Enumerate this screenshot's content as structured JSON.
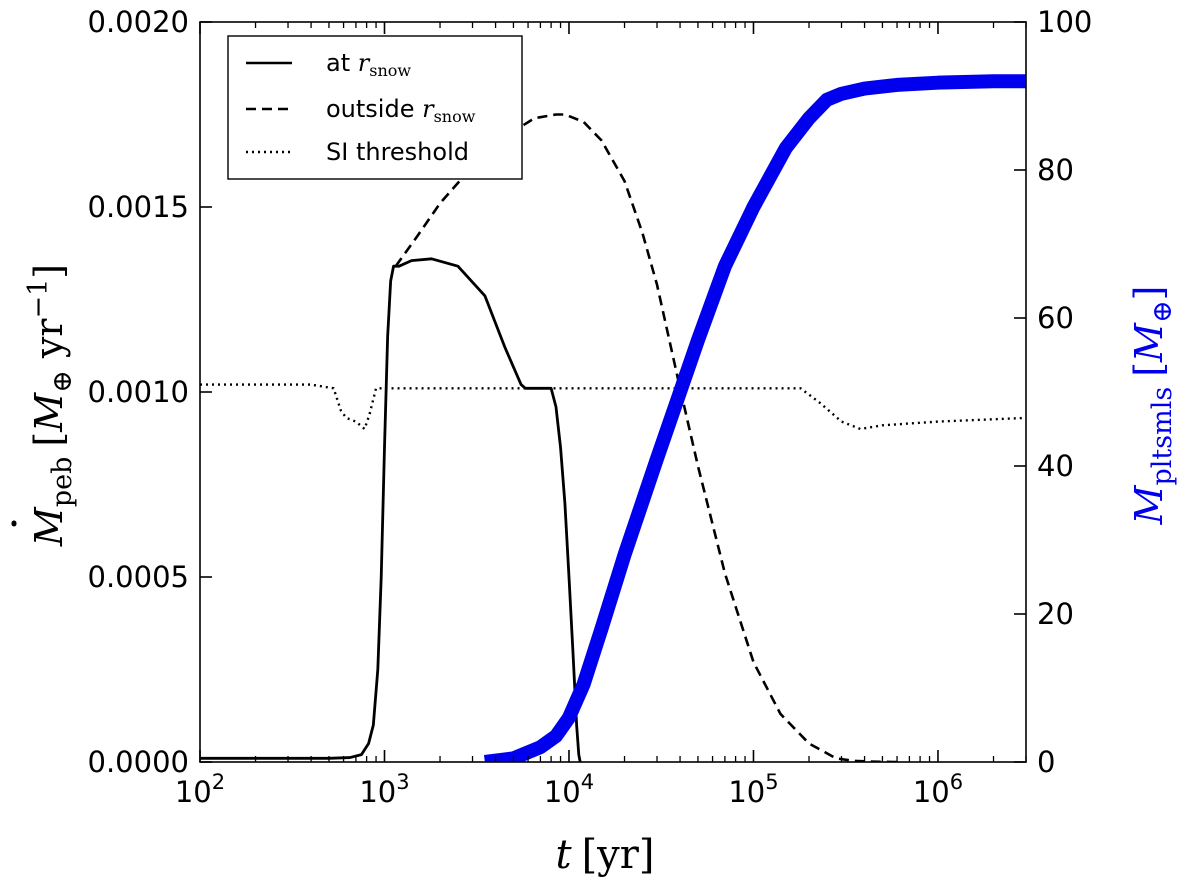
{
  "chart_data": {
    "type": "line",
    "title": "",
    "xlabel": {
      "sym": "t",
      "unit": "[yr]"
    },
    "ylabel_left": {
      "sym": "M",
      "sub": "peb",
      "unit_open": "[",
      "unit_sym": "M",
      "unit_sub": "⊕",
      "unit_rest": " yr",
      "unit_sup": "−1",
      "unit_close": "]"
    },
    "ylabel_right": {
      "sym": "M",
      "sub": "pltsmls",
      "unit_open": "[",
      "unit_sym": "M",
      "unit_sub": "⊕",
      "unit_close": "]",
      "color": "#0000ee"
    },
    "x_scale": "log",
    "xlim": [
      100,
      3000000
    ],
    "ylim_left": [
      0,
      0.002
    ],
    "ylim_right": [
      0,
      100
    ],
    "x_ticks": [
      {
        "value": 100,
        "base": "10",
        "exp": "2"
      },
      {
        "value": 1000,
        "base": "10",
        "exp": "3"
      },
      {
        "value": 10000,
        "base": "10",
        "exp": "4"
      },
      {
        "value": 100000,
        "base": "10",
        "exp": "5"
      },
      {
        "value": 1000000,
        "base": "10",
        "exp": "6"
      }
    ],
    "y_ticks_left": [
      {
        "value": 0,
        "label": "0.0000"
      },
      {
        "value": 0.0005,
        "label": "0.0005"
      },
      {
        "value": 0.001,
        "label": "0.0010"
      },
      {
        "value": 0.0015,
        "label": "0.0015"
      },
      {
        "value": 0.002,
        "label": "0.0020"
      }
    ],
    "y_ticks_right": [
      {
        "value": 0,
        "label": "0"
      },
      {
        "value": 20,
        "label": "20"
      },
      {
        "value": 40,
        "label": "40"
      },
      {
        "value": 60,
        "label": "60"
      },
      {
        "value": 80,
        "label": "80"
      },
      {
        "value": 100,
        "label": "100"
      }
    ],
    "grid": false,
    "legend_position": "top-left",
    "legend": [
      {
        "key": "at",
        "text": "at ",
        "sym": "r",
        "sub": "snow",
        "style": "solid"
      },
      {
        "key": "outside",
        "text": "outside ",
        "sym": "r",
        "sub": "snow",
        "style": "dashed"
      },
      {
        "key": "si",
        "text": "SI threshold",
        "style": "dotted"
      }
    ],
    "series": [
      {
        "key": "at",
        "axis": "left",
        "style": "solid",
        "color": "#000000",
        "x": [
          100,
          300,
          500,
          650,
          750,
          820,
          870,
          920,
          960,
          1000,
          1040,
          1080,
          1120,
          1200,
          1400,
          1800,
          2500,
          3500,
          4500,
          5500,
          5800,
          7000,
          8000,
          8500,
          9000,
          9500,
          10000,
          10500,
          11000,
          11300,
          11500
        ],
        "y": [
          1e-05,
          1e-05,
          1e-05,
          1.2e-05,
          2e-05,
          5e-05,
          0.0001,
          0.00025,
          0.0005,
          0.00085,
          0.00115,
          0.0013,
          0.00134,
          0.00134,
          0.001355,
          0.00136,
          0.00134,
          0.00126,
          0.00112,
          0.00102,
          0.00101,
          0.00101,
          0.00101,
          0.00096,
          0.00085,
          0.0007,
          0.0005,
          0.0003,
          0.0001,
          2e-05,
          0
        ]
      },
      {
        "key": "outside",
        "axis": "left",
        "style": "dashed",
        "color": "#000000",
        "x": [
          1150,
          1500,
          2000,
          3000,
          4500,
          6500,
          8500,
          9500,
          12000,
          15000,
          20000,
          25000,
          30000,
          40000,
          50000,
          70000,
          100000,
          140000,
          200000,
          280000,
          350000,
          450000,
          600000
        ],
        "y": [
          0.00134,
          0.00142,
          0.00151,
          0.00161,
          0.00169,
          0.00174,
          0.00175,
          0.00175,
          0.00173,
          0.00168,
          0.00157,
          0.00143,
          0.00129,
          0.00101,
          0.0008,
          0.00051,
          0.00027,
          0.00013,
          5e-05,
          1e-05,
          3e-06,
          1e-06,
          0
        ]
      },
      {
        "key": "si",
        "axis": "left",
        "style": "dotted",
        "color": "#000000",
        "x": [
          100,
          400,
          530,
          580,
          620,
          700,
          780,
          830,
          900,
          1000,
          2000,
          5000,
          10000,
          50000,
          100000,
          180000,
          230000,
          300000,
          380000,
          500000,
          1000000,
          3000000
        ],
        "y": [
          0.00102,
          0.00102,
          0.00101,
          0.00095,
          0.00093,
          0.00092,
          0.0009,
          0.00094,
          0.00101,
          0.00101,
          0.00101,
          0.00101,
          0.00101,
          0.00101,
          0.00101,
          0.00101,
          0.00097,
          0.00092,
          0.0009,
          0.00091,
          0.00092,
          0.00093
        ]
      },
      {
        "key": "pltsmls",
        "axis": "right",
        "style": "thick",
        "color": "#0000ee",
        "x": [
          3500,
          5000,
          7000,
          8500,
          10000,
          12000,
          15000,
          20000,
          30000,
          40000,
          50000,
          70000,
          100000,
          150000,
          200000,
          250000,
          300000,
          400000,
          600000,
          1000000,
          2000000,
          3000000
        ],
        "y": [
          0,
          0.5,
          2,
          3.5,
          6,
          10.5,
          18,
          28,
          41,
          50,
          57,
          67,
          75,
          83,
          87,
          89.5,
          90.3,
          91,
          91.5,
          91.8,
          92,
          92
        ]
      }
    ]
  }
}
